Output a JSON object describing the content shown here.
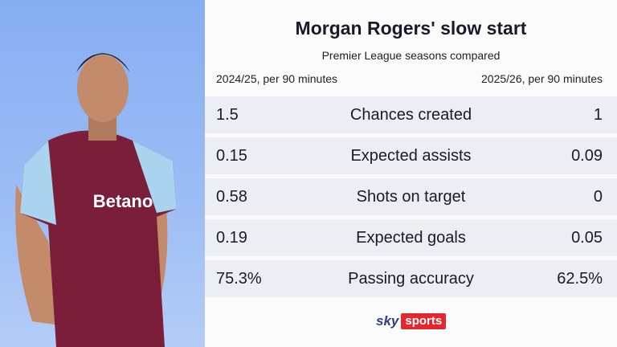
{
  "header": {
    "title": "Morgan Rogers' slow start",
    "subtitle": "Premier League seasons compared"
  },
  "table": {
    "columns": [
      "2024/25, per 90 minutes",
      "2025/26, per 90 minutes"
    ],
    "rows": [
      [
        "1.5",
        "Chances created",
        "1"
      ],
      [
        "0.15",
        "Expected assists",
        "0.09"
      ],
      [
        "0.58",
        "Shots on target",
        "0"
      ],
      [
        "0.19",
        "Expected goals",
        "0.05"
      ],
      [
        "75.3%",
        "Passing accuracy",
        "62.5%"
      ]
    ]
  },
  "branding": {
    "brand": "sky",
    "product": "sports",
    "sponsor": "Betano"
  }
}
